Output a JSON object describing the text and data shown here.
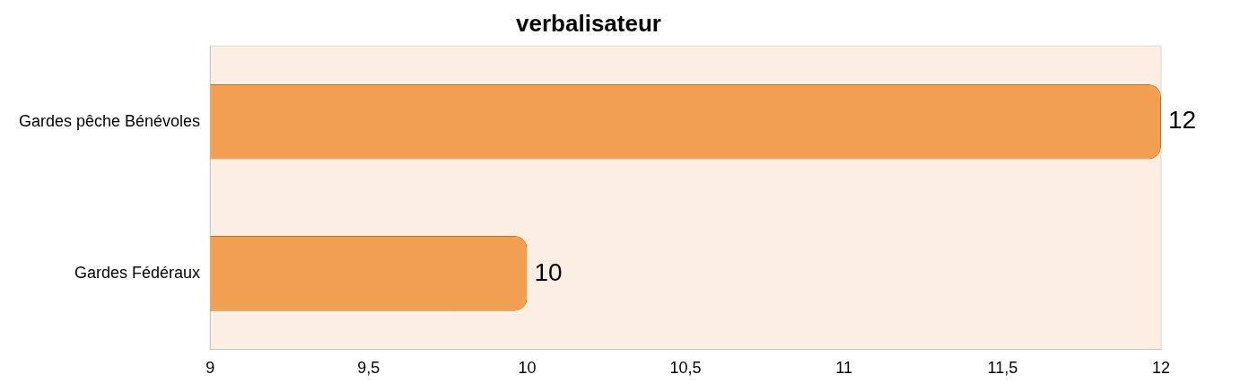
{
  "chart_data": {
    "type": "bar",
    "orientation": "horizontal",
    "title": "verbalisateur",
    "categories": [
      "Gardes pêche Bénévoles",
      "Gardes Fédéraux"
    ],
    "values": [
      12,
      10
    ],
    "color": "#f0a050",
    "xlim": [
      9,
      12
    ],
    "xticks": [
      9,
      {
        "value": 9.5,
        "label": "9,5"
      },
      10,
      {
        "value": 10.5,
        "label": "10,5"
      },
      11,
      {
        "value": 11.5,
        "label": "11,5"
      },
      12
    ],
    "data_labels": true,
    "grid": false,
    "legend": false
  }
}
